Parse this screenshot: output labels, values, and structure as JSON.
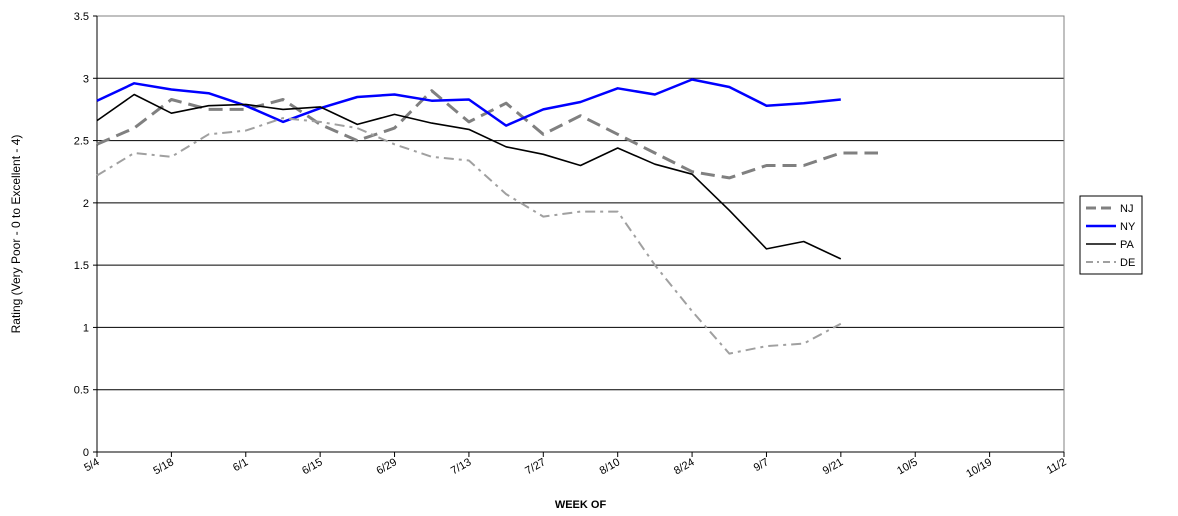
{
  "chart_data": {
    "type": "line",
    "title": "",
    "xlabel": "WEEK OF",
    "ylabel": "Rating (Very Poor - 0 to Excellent - 4)",
    "ylim": [
      0,
      3.5
    ],
    "y_ticks": [
      "0",
      "0.5",
      "1",
      "1.5",
      "2",
      "2.5",
      "3",
      "3.5"
    ],
    "x_tick_labels": [
      "5/4",
      "5/18",
      "6/1",
      "6/15",
      "6/29",
      "7/13",
      "7/27",
      "8/10",
      "8/24",
      "9/7",
      "9/21",
      "10/5",
      "10/19",
      "11/2"
    ],
    "weeks": [
      "5/4",
      "5/11",
      "5/18",
      "5/25",
      "6/1",
      "6/8",
      "6/15",
      "6/22",
      "6/29",
      "7/6",
      "7/13",
      "7/20",
      "7/27",
      "8/3",
      "8/10",
      "8/17",
      "8/24",
      "8/31",
      "9/7",
      "9/14",
      "9/21",
      "9/28",
      "10/5",
      "10/12",
      "10/19",
      "10/26",
      "11/2"
    ],
    "grid": "horizontal",
    "legend_position": "right",
    "series": [
      {
        "name": "NJ",
        "color": "#808080",
        "style": "dashed",
        "values": [
          2.47,
          2.6,
          2.83,
          2.75,
          2.75,
          2.83,
          2.63,
          2.5,
          2.6,
          2.9,
          2.65,
          2.8,
          2.55,
          2.7,
          2.55,
          2.4,
          2.25,
          2.2,
          2.3,
          2.3,
          2.4,
          2.4
        ]
      },
      {
        "name": "NY",
        "color": "#0000ff",
        "style": "solid",
        "values": [
          2.82,
          2.96,
          2.91,
          2.88,
          2.78,
          2.65,
          2.76,
          2.85,
          2.87,
          2.82,
          2.83,
          2.62,
          2.75,
          2.81,
          2.92,
          2.87,
          2.99,
          2.93,
          2.78,
          2.8,
          2.83
        ]
      },
      {
        "name": "PA",
        "color": "#000000",
        "style": "solid",
        "values": [
          2.66,
          2.87,
          2.72,
          2.78,
          2.79,
          2.75,
          2.77,
          2.63,
          2.71,
          2.64,
          2.59,
          2.45,
          2.39,
          2.3,
          2.44,
          2.31,
          2.23,
          1.94,
          1.63,
          1.69,
          1.55
        ]
      },
      {
        "name": "DE",
        "color": "#a0a0a0",
        "style": "dashdot",
        "values": [
          2.22,
          2.4,
          2.37,
          2.55,
          2.58,
          2.68,
          2.65,
          2.6,
          2.47,
          2.37,
          2.34,
          2.07,
          1.89,
          1.93,
          1.93,
          1.5,
          1.13,
          0.79,
          0.85,
          0.87,
          1.03
        ]
      }
    ]
  }
}
